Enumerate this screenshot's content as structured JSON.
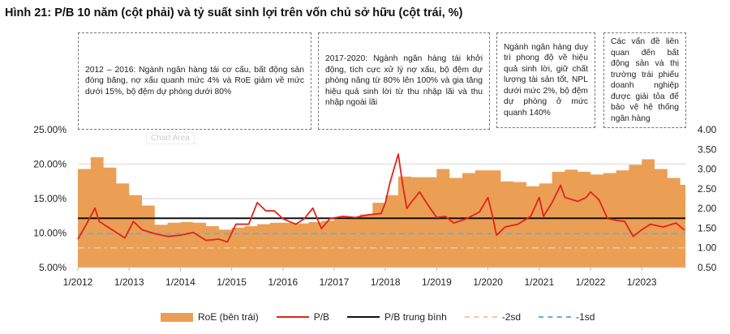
{
  "title": "Hình 21: P/B 10 năm (cột phải) và tỷ suất sinh lợi trên vốn chủ sở hữu (cột trái, %)",
  "notes": [
    "2012 – 2016: Ngành ngân hàng tái cơ cấu, bất động sản đóng băng, nợ xấu quanh mức 4% và RoE giảm về mức dưới 15%, bộ đệm dự phòng dưới 80%",
    "2017-2020: Ngành ngân hàng tái khởi động, tích cực xử lý nợ xấu, bộ đệm dự phòng nâng từ 80% lên 100% và gia tăng hiệu quả sinh lời từ thu nhập lãi và thu nhập ngoài lãi",
    "Ngành ngân hàng duy trì phong độ về hiệu quả sinh lời, giữ chất lượng tài sản tốt, NPL dưới mức 2%, bộ đệm dự phòng ở mức quanh 140%",
    "Các vấn đề liên quan đến bất động sản và thị trường trái phiếu doanh nghiệp được giải tỏa để bảo vệ hệ thống ngân hàng"
  ],
  "chart_area_label": "Chart Area",
  "chart_data": {
    "type": "area+line",
    "title": "",
    "x_ticks": [
      "1/2012",
      "1/2013",
      "1/2014",
      "1/2015",
      "1/2016",
      "1/2017",
      "1/2018",
      "1/2019",
      "1/2020",
      "1/2021",
      "1/2022",
      "1/2023"
    ],
    "y_left": {
      "range": [
        5,
        25
      ],
      "ticks": [
        "5.00%",
        "10.00%",
        "15.00%",
        "20.00%",
        "25.00%"
      ]
    },
    "y_right": {
      "range": [
        0.5,
        4.0
      ],
      "ticks": [
        "0.50",
        "1.00",
        "1.50",
        "2.00",
        "2.50",
        "3.00",
        "3.50",
        "4.00"
      ]
    },
    "grid": "horizontal",
    "legend_position": "bottom",
    "colors": {
      "roe": "#eb9f55",
      "pb": "#e2231a",
      "mean": "#111111",
      "minus2sd": "#f2c9a0",
      "minus1sd": "#6aaed6"
    },
    "series": [
      {
        "name": "RoE (bên trái)",
        "axis": "left",
        "type": "area",
        "x": [
          "2012-01",
          "2012-04",
          "2012-07",
          "2012-10",
          "2013-01",
          "2013-04",
          "2013-07",
          "2013-10",
          "2014-01",
          "2014-04",
          "2014-07",
          "2014-10",
          "2015-01",
          "2015-04",
          "2015-07",
          "2015-10",
          "2016-01",
          "2016-04",
          "2016-07",
          "2016-10",
          "2017-01",
          "2017-04",
          "2017-07",
          "2017-10",
          "2018-01",
          "2018-04",
          "2018-07",
          "2018-10",
          "2019-01",
          "2019-04",
          "2019-07",
          "2019-10",
          "2020-01",
          "2020-04",
          "2020-07",
          "2020-10",
          "2021-01",
          "2021-04",
          "2021-07",
          "2021-10",
          "2022-01",
          "2022-04",
          "2022-07",
          "2022-10",
          "2023-01",
          "2023-04",
          "2023-07",
          "2023-10",
          "2023-11"
        ],
        "values": [
          19.3,
          21.0,
          19.5,
          17.2,
          15.5,
          14.0,
          11.2,
          11.5,
          11.6,
          11.5,
          11.0,
          10.5,
          10.8,
          11.0,
          11.3,
          11.5,
          11.5,
          11.4,
          11.6,
          11.8,
          12.0,
          12.3,
          12.7,
          14.4,
          15.5,
          18.2,
          18.1,
          18.1,
          19.3,
          18.0,
          18.7,
          19.1,
          19.1,
          17.5,
          17.4,
          16.8,
          17.2,
          18.9,
          19.2,
          18.9,
          18.5,
          18.7,
          19.1,
          19.9,
          20.7,
          19.3,
          18.0,
          17.0,
          17.0
        ]
      },
      {
        "name": "P/B",
        "axis": "right",
        "type": "line",
        "x": [
          "2012-01",
          "2012-03",
          "2012-05",
          "2012-06",
          "2012-09",
          "2012-12",
          "2013-02",
          "2013-04",
          "2013-07",
          "2013-10",
          "2014-01",
          "2014-04",
          "2014-07",
          "2014-10",
          "2014-12",
          "2015-02",
          "2015-05",
          "2015-07",
          "2015-09",
          "2015-11",
          "2016-01",
          "2016-04",
          "2016-06",
          "2016-08",
          "2016-10",
          "2016-12",
          "2017-03",
          "2017-06",
          "2017-09",
          "2017-12",
          "2018-01",
          "2018-02",
          "2018-04",
          "2018-05",
          "2018-06",
          "2018-07",
          "2018-09",
          "2018-11",
          "2019-01",
          "2019-03",
          "2019-05",
          "2019-08",
          "2019-11",
          "2020-01",
          "2020-02",
          "2020-03",
          "2020-05",
          "2020-08",
          "2020-11",
          "2021-01",
          "2021-02",
          "2021-04",
          "2021-06",
          "2021-07",
          "2021-10",
          "2021-12",
          "2022-01",
          "2022-03",
          "2022-05",
          "2022-07",
          "2022-09",
          "2022-11",
          "2023-01",
          "2023-03",
          "2023-06",
          "2023-09",
          "2023-11"
        ],
        "values": [
          1.22,
          1.6,
          2.01,
          1.67,
          1.46,
          1.25,
          1.67,
          1.46,
          1.36,
          1.29,
          1.32,
          1.39,
          1.19,
          1.22,
          1.15,
          1.6,
          1.6,
          2.15,
          1.94,
          1.94,
          1.74,
          1.6,
          1.74,
          2.01,
          1.49,
          1.74,
          1.8,
          1.77,
          1.84,
          1.87,
          2.15,
          2.63,
          3.38,
          2.63,
          2.0,
          2.15,
          2.42,
          2.08,
          1.77,
          1.8,
          1.63,
          1.74,
          1.91,
          2.28,
          1.84,
          1.32,
          1.53,
          1.6,
          1.8,
          2.28,
          1.8,
          2.15,
          2.59,
          2.28,
          2.18,
          2.28,
          2.42,
          2.22,
          1.74,
          1.7,
          1.67,
          1.29,
          1.46,
          1.6,
          1.53,
          1.63,
          1.45
        ]
      },
      {
        "name": "P/B trung bình",
        "axis": "right",
        "type": "hline",
        "value": 1.75
      },
      {
        "name": "-2sd",
        "axis": "right",
        "type": "hline",
        "value": 1.0
      },
      {
        "name": "-1sd",
        "axis": "right",
        "type": "hline",
        "value": 1.36
      }
    ]
  }
}
